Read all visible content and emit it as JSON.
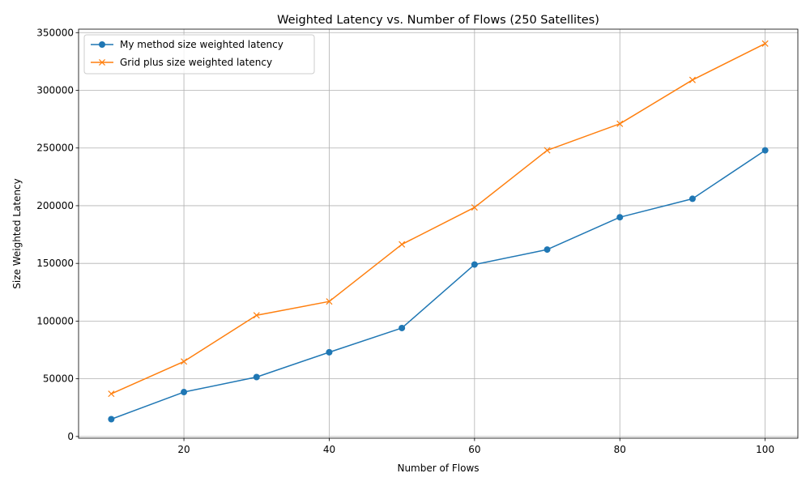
{
  "chart_data": {
    "type": "line",
    "title": "Weighted Latency vs. Number of Flows (250 Satellites)",
    "xlabel": "Number of Flows",
    "ylabel": "Size Weighted Latency",
    "x": [
      10,
      20,
      30,
      40,
      50,
      60,
      70,
      80,
      90,
      100
    ],
    "xlim": [
      5.5,
      104.5
    ],
    "ylim": [
      -1500,
      353000
    ],
    "xticks": [
      20,
      40,
      60,
      80,
      100
    ],
    "yticks": [
      0,
      50000,
      100000,
      150000,
      200000,
      250000,
      300000,
      350000
    ],
    "grid": true,
    "legend_position": "top-left",
    "series": [
      {
        "name": "My method size weighted latency",
        "marker": "circle",
        "color": "#1f77b4",
        "values": [
          15000,
          38500,
          51500,
          73000,
          94000,
          149000,
          162000,
          190000,
          206000,
          248000
        ]
      },
      {
        "name": "Grid plus size weighted latency",
        "marker": "x",
        "color": "#ff7f0e",
        "values": [
          37000,
          65000,
          105000,
          117000,
          166500,
          198500,
          248000,
          271000,
          309000,
          340500
        ]
      }
    ]
  }
}
